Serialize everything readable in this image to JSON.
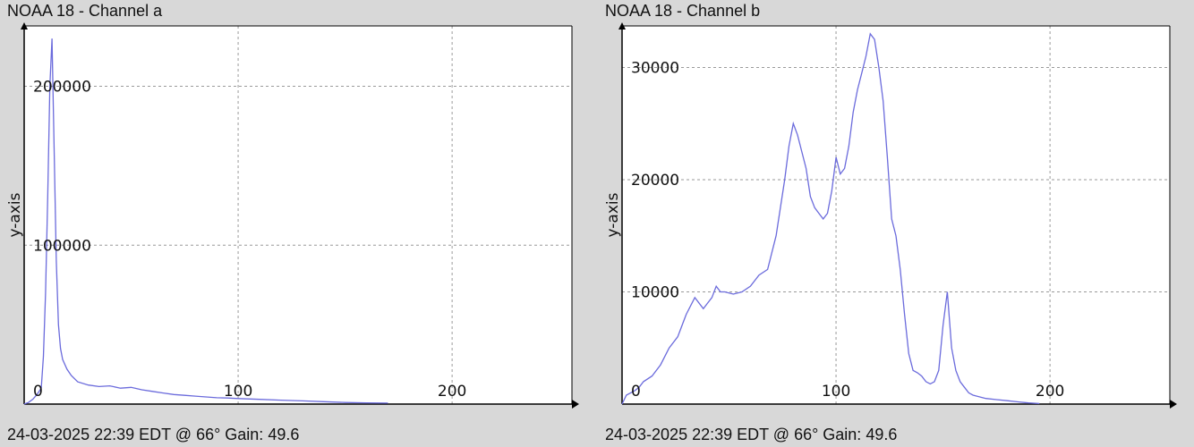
{
  "panels": [
    {
      "title": "NOAA 18 - Channel a",
      "footer": "24-03-2025 22:39 EDT @ 66° Gain: 49.6"
    },
    {
      "title": "NOAA 18 - Channel b",
      "footer": "24-03-2025 22:39 EDT @ 66° Gain: 49.6"
    }
  ],
  "colors": {
    "line": "#6b6bdc",
    "axis": "#000000",
    "grid": "#9a9a9a",
    "plot_bg": "#ffffff",
    "page_bg": "#d8d8d8"
  },
  "chart_data": [
    {
      "type": "line",
      "title": "NOAA 18 - Channel a",
      "xlabel": "",
      "ylabel": "y-axis",
      "xlim": [
        0,
        256
      ],
      "ylim": [
        0,
        238000
      ],
      "xticks": [
        {
          "v": 0,
          "label": "0"
        },
        {
          "v": 100,
          "label": "100"
        },
        {
          "v": 200,
          "label": "200"
        }
      ],
      "yticks": [
        {
          "v": 100000,
          "label": "100000"
        },
        {
          "v": 200000,
          "label": "200000"
        }
      ],
      "grid": true,
      "series": [
        {
          "x": [
            0,
            2,
            4,
            6,
            8,
            9,
            10,
            11,
            12,
            13,
            14,
            15,
            16,
            17,
            18,
            20,
            22,
            25,
            30,
            35,
            40,
            45,
            50,
            55,
            60,
            65,
            70,
            75,
            80,
            85,
            90,
            95,
            100,
            110,
            120,
            130,
            140,
            150,
            160,
            170
          ],
          "y": [
            0,
            1000,
            3000,
            6000,
            10000,
            30000,
            70000,
            130000,
            200000,
            230000,
            160000,
            90000,
            50000,
            35000,
            28000,
            22000,
            18000,
            14000,
            12000,
            11000,
            11500,
            10000,
            10500,
            9000,
            8000,
            7000,
            6000,
            5500,
            5000,
            4500,
            4000,
            3800,
            3500,
            3000,
            2500,
            2000,
            1500,
            1000,
            800,
            600
          ]
        }
      ]
    },
    {
      "type": "line",
      "title": "NOAA 18 - Channel b",
      "xlabel": "",
      "ylabel": "y-axis",
      "xlim": [
        0,
        256
      ],
      "ylim": [
        0,
        33700
      ],
      "xticks": [
        {
          "v": 0,
          "label": "0"
        },
        {
          "v": 100,
          "label": "100"
        },
        {
          "v": 200,
          "label": "200"
        }
      ],
      "yticks": [
        {
          "v": 10000,
          "label": "10000"
        },
        {
          "v": 20000,
          "label": "20000"
        },
        {
          "v": 30000,
          "label": "30000"
        }
      ],
      "grid": true,
      "series": [
        {
          "x": [
            0,
            2,
            4,
            6,
            8,
            10,
            14,
            18,
            22,
            26,
            30,
            34,
            38,
            40,
            42,
            44,
            46,
            48,
            52,
            56,
            60,
            64,
            68,
            72,
            76,
            78,
            80,
            82,
            84,
            86,
            88,
            90,
            92,
            94,
            96,
            98,
            100,
            102,
            104,
            106,
            108,
            110,
            112,
            114,
            116,
            118,
            120,
            122,
            124,
            126,
            128,
            130,
            132,
            134,
            136,
            138,
            140,
            142,
            144,
            146,
            148,
            150,
            152,
            154,
            156,
            158,
            160,
            162,
            164,
            166,
            168,
            170,
            175,
            180,
            185,
            190,
            195
          ],
          "y": [
            0,
            800,
            1000,
            1200,
            1500,
            2000,
            2500,
            3500,
            5000,
            6000,
            8000,
            9500,
            8500,
            9000,
            9500,
            10500,
            10000,
            10000,
            9800,
            10000,
            10500,
            11500,
            12000,
            15000,
            20000,
            23000,
            25000,
            24000,
            22500,
            21000,
            18500,
            17500,
            17000,
            16500,
            17000,
            19000,
            22000,
            20500,
            21000,
            23000,
            26000,
            28000,
            29500,
            31000,
            33000,
            32500,
            30000,
            27000,
            22000,
            16500,
            15000,
            12000,
            8000,
            4500,
            3000,
            2800,
            2500,
            2000,
            1800,
            2000,
            3000,
            7000,
            10000,
            5000,
            3000,
            2000,
            1500,
            1000,
            800,
            700,
            600,
            500,
            400,
            300,
            200,
            100,
            50
          ]
        }
      ]
    }
  ]
}
